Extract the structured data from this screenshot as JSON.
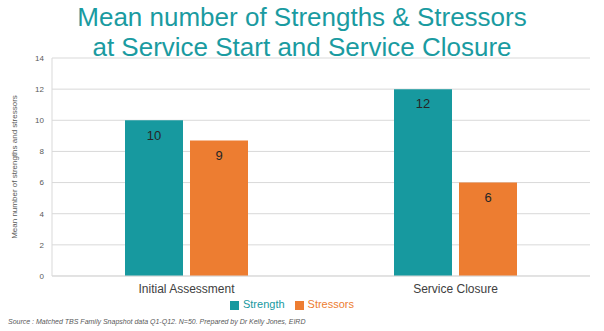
{
  "chart_data": {
    "type": "bar",
    "title": [
      "Mean number of Strengths & Stressors",
      "at Service Start and Service Closure"
    ],
    "y_label": "Mean number of strengths and stressors",
    "categories": [
      "Initial Assessment",
      "Service Closure"
    ],
    "series": [
      {
        "name": "Strength",
        "color": "#17999f",
        "values": [
          10,
          12
        ]
      },
      {
        "name": "Stressors",
        "color": "#ed7d31",
        "values": [
          8.7,
          6
        ],
        "value_labels": [
          "9",
          "6"
        ]
      }
    ],
    "ylim": [
      0,
      14
    ],
    "yticks": [
      0,
      2,
      4,
      6,
      8,
      10,
      12,
      14
    ],
    "grid": true,
    "legend": "bottom",
    "data_labels": true,
    "annotation": "Source : Matched TBS Family Snapshot data Q1-Q12. N=50. Prepared by Dr Kelly Jones, EIRD"
  }
}
